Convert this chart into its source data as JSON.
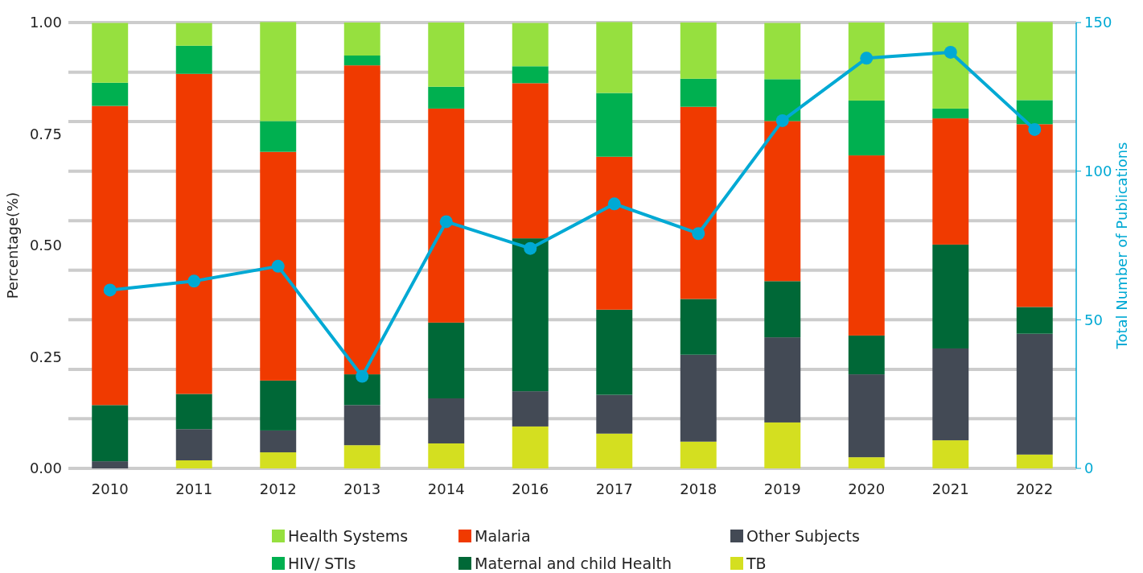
{
  "chart_data": {
    "type": "bar",
    "stacked": true,
    "ylabel": "Percentage(%)",
    "y2label": "Total Number of Publications",
    "categories": [
      "2010",
      "2011",
      "2012",
      "2013",
      "2014",
      "2016",
      "2017",
      "2018",
      "2019",
      "2020",
      "2021",
      "2022"
    ],
    "ylim": [
      0,
      1
    ],
    "yticks": [
      {
        "value": 0,
        "label": "0.00"
      },
      {
        "value": 0.25,
        "label": "0.25"
      },
      {
        "value": 0.5,
        "label": "0.50"
      },
      {
        "value": 0.75,
        "label": "0.75"
      },
      {
        "value": 1,
        "label": "1.00"
      }
    ],
    "y2lim": [
      0,
      150
    ],
    "y2ticks": [
      0,
      {
        "value": 16.7,
        "label": null
      },
      {
        "value": 33.3,
        "label": null
      },
      50,
      {
        "value": 66.7,
        "label": null
      },
      {
        "value": 83.3,
        "label": null
      },
      100,
      {
        "value": 116.7,
        "label": null
      },
      {
        "value": 133.3,
        "label": null
      },
      150
    ],
    "grid": "y2",
    "legend": "bottom",
    "series": [
      {
        "name": "TB",
        "color": "#d4df20",
        "values": [
          0,
          0.018,
          0.036,
          0.052,
          0.056,
          0.094,
          0.078,
          0.06,
          0.103,
          0.025,
          0.063,
          0.031
        ]
      },
      {
        "name": "Other Subjects",
        "color": "#434a55",
        "values": [
          0.016,
          0.07,
          0.049,
          0.09,
          0.101,
          0.079,
          0.087,
          0.195,
          0.191,
          0.186,
          0.206,
          0.271
        ]
      },
      {
        "name": "Maternal and child Health",
        "color": "#006837",
        "values": [
          0.126,
          0.079,
          0.112,
          0.069,
          0.17,
          0.343,
          0.191,
          0.125,
          0.126,
          0.087,
          0.233,
          0.06
        ]
      },
      {
        "name": "Malaria",
        "color": "#f03a00",
        "values": [
          0.671,
          0.718,
          0.513,
          0.693,
          0.48,
          0.348,
          0.343,
          0.431,
          0.359,
          0.404,
          0.283,
          0.41
        ]
      },
      {
        "name": "HIV/ STIs",
        "color": "#00b050",
        "values": [
          0.052,
          0.063,
          0.069,
          0.022,
          0.049,
          0.038,
          0.143,
          0.063,
          0.094,
          0.123,
          0.022,
          0.054
        ]
      },
      {
        "name": "Health Systems",
        "color": "#96e03f",
        "values": [
          0.134,
          0.051,
          0.222,
          0.074,
          0.144,
          0.097,
          0.159,
          0.126,
          0.126,
          0.175,
          0.193,
          0.175
        ]
      },
      {
        "type": "line",
        "axis": "y2",
        "color": "#00a9d4",
        "marker": "circle",
        "values": [
          60,
          63,
          68,
          31,
          83,
          74,
          89,
          79,
          117,
          138,
          140,
          114
        ]
      }
    ]
  }
}
